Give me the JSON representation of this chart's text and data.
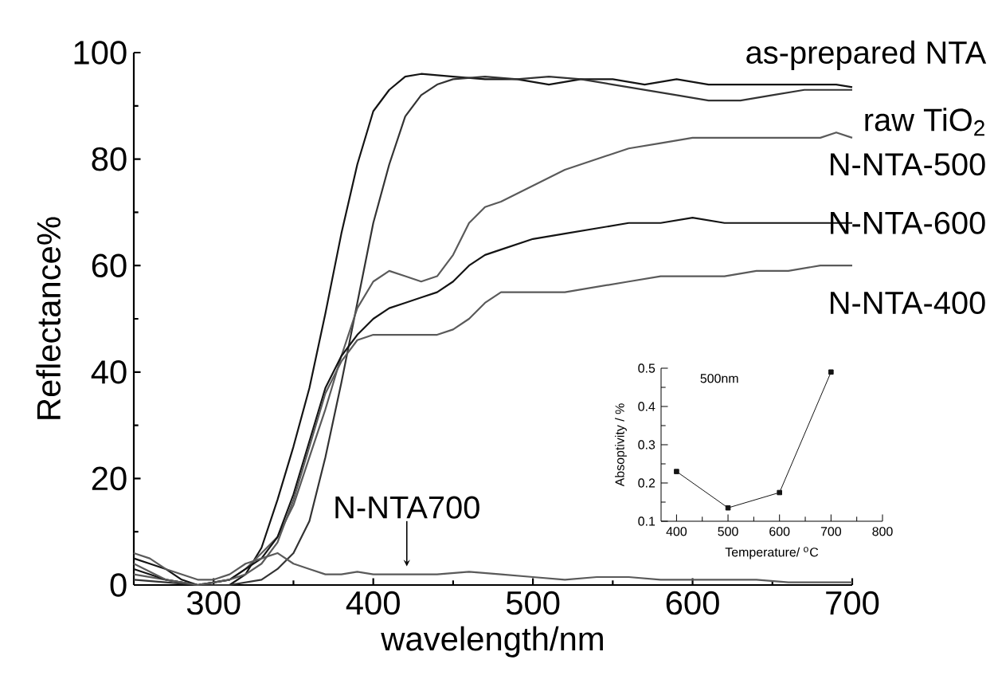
{
  "chart_data": [
    {
      "type": "line",
      "xlabel": "wavelength/nm",
      "ylabel": "Reflectance%",
      "xlim": [
        250,
        700
      ],
      "xticks": [
        300,
        400,
        500,
        600,
        700
      ],
      "ylim": [
        0,
        100
      ],
      "yticks": [
        0,
        20,
        40,
        60,
        80,
        100
      ],
      "grid": false,
      "legend": false,
      "marker": "none",
      "line_style": "solid",
      "series": [
        {
          "name": "as-prepared NTA",
          "color": "#141414",
          "x": [
            250,
            260,
            270,
            280,
            290,
            300,
            310,
            320,
            330,
            340,
            350,
            360,
            370,
            380,
            390,
            400,
            410,
            420,
            430,
            450,
            470,
            490,
            510,
            530,
            550,
            570,
            590,
            610,
            630,
            650,
            670,
            690,
            700
          ],
          "values": [
            5,
            4,
            3,
            1,
            0,
            0,
            0,
            2,
            7,
            16,
            26,
            37,
            51,
            66,
            79,
            89,
            93,
            95.5,
            96,
            95.5,
            95,
            95,
            94,
            95,
            95,
            94,
            95,
            94,
            94,
            94,
            94,
            94,
            93.5
          ]
        },
        {
          "name": "raw TiO$_{2}$",
          "color": "#333333",
          "x": [
            250,
            270,
            290,
            310,
            330,
            340,
            350,
            360,
            370,
            380,
            390,
            400,
            410,
            420,
            430,
            440,
            450,
            470,
            490,
            510,
            530,
            550,
            570,
            590,
            610,
            630,
            650,
            670,
            690,
            700
          ],
          "values": [
            1,
            0.5,
            0,
            0,
            1,
            3,
            6,
            12,
            24,
            38,
            53,
            68,
            79,
            88,
            92,
            94,
            95,
            95.5,
            95,
            95.5,
            95,
            94,
            93,
            92,
            91,
            91,
            92,
            93,
            93,
            93
          ]
        },
        {
          "name": "N-NTA-500",
          "color": "#5a5a5a",
          "x": [
            250,
            270,
            290,
            310,
            320,
            330,
            340,
            350,
            360,
            370,
            380,
            390,
            400,
            410,
            420,
            430,
            440,
            450,
            460,
            470,
            480,
            500,
            520,
            540,
            560,
            580,
            600,
            620,
            640,
            660,
            680,
            690,
            700
          ],
          "values": [
            2,
            1,
            0,
            1,
            3,
            6,
            9,
            15,
            24,
            33,
            43,
            52,
            57,
            59,
            58,
            57,
            58,
            62,
            68,
            71,
            72,
            75,
            78,
            80,
            82,
            83,
            84,
            84,
            84,
            84,
            84,
            85,
            84
          ]
        },
        {
          "name": "N-NTA-600",
          "color": "#141414",
          "x": [
            250,
            270,
            290,
            310,
            320,
            330,
            340,
            350,
            360,
            370,
            380,
            390,
            400,
            410,
            420,
            430,
            440,
            450,
            460,
            470,
            480,
            500,
            520,
            540,
            560,
            580,
            600,
            620,
            640,
            660,
            680,
            700
          ],
          "values": [
            3,
            1,
            0,
            1,
            3,
            5,
            9,
            17,
            27,
            37,
            43,
            47,
            50,
            52,
            53,
            54,
            55,
            57,
            60,
            62,
            63,
            65,
            66,
            67,
            68,
            68,
            69,
            68,
            68,
            68,
            68,
            68
          ]
        },
        {
          "name": "N-NTA-400",
          "color": "#5a5a5a",
          "x": [
            250,
            270,
            290,
            310,
            320,
            330,
            340,
            350,
            360,
            370,
            380,
            390,
            400,
            410,
            420,
            430,
            440,
            450,
            460,
            470,
            480,
            500,
            520,
            540,
            560,
            580,
            600,
            620,
            640,
            660,
            680,
            690,
            700
          ],
          "values": [
            4,
            1,
            0,
            1,
            2,
            4,
            8,
            16,
            26,
            36,
            42,
            46,
            47,
            47,
            47,
            47,
            47,
            48,
            50,
            53,
            55,
            55,
            55,
            56,
            57,
            58,
            58,
            58,
            59,
            59,
            60,
            60,
            60
          ]
        },
        {
          "name": "N-NTA700",
          "color": "#5a5a5a",
          "x": [
            250,
            260,
            270,
            280,
            290,
            300,
            310,
            320,
            330,
            340,
            350,
            360,
            370,
            380,
            390,
            400,
            420,
            440,
            460,
            480,
            500,
            520,
            540,
            560,
            580,
            600,
            620,
            640,
            660,
            680,
            700
          ],
          "values": [
            6,
            5,
            3,
            2,
            1,
            1,
            2,
            4,
            5,
            6,
            4,
            3,
            2,
            2,
            2.5,
            2,
            2,
            2,
            2.5,
            2,
            1.5,
            1,
            1.5,
            1.5,
            1,
            1,
            1,
            1,
            0.5,
            0.5,
            0.5
          ]
        }
      ]
    },
    {
      "type": "line",
      "xlabel": "Temperature/ $^{o}$C",
      "ylabel": "Absoptivity / %",
      "annotations": [
        "500nm"
      ],
      "xlim": [
        370,
        800
      ],
      "xticks": [
        400,
        500,
        600,
        700,
        800
      ],
      "ylim": [
        0.1,
        0.5
      ],
      "yticks": [
        0.1,
        0.2,
        0.3,
        0.4,
        0.5
      ],
      "grid": false,
      "legend": false,
      "marker": "square",
      "line_style": "solid",
      "series": [
        {
          "color": "#141414",
          "x": [
            400,
            500,
            600,
            700
          ],
          "values": [
            0.23,
            0.135,
            0.175,
            0.49
          ]
        }
      ]
    }
  ]
}
